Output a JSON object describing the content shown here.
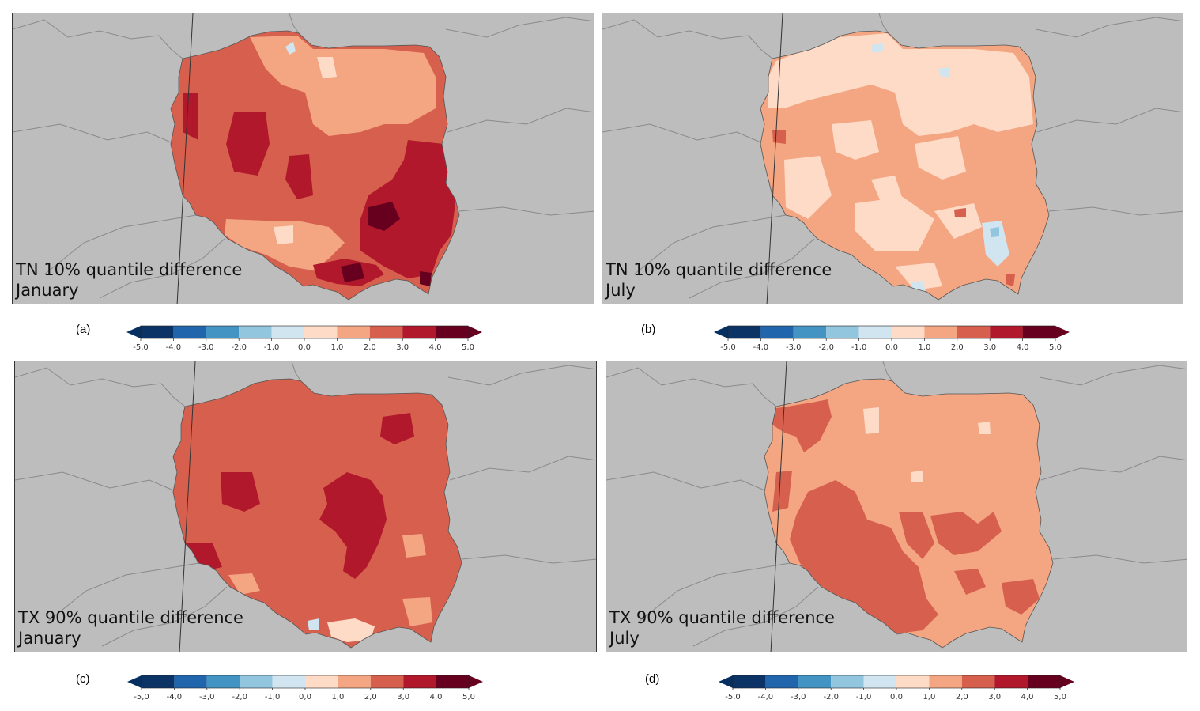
{
  "colorbar": {
    "colors": [
      "#0b3366",
      "#2166ac",
      "#4393c3",
      "#92c5de",
      "#d1e5f0",
      "#fddbc7",
      "#f4a582",
      "#d6604d",
      "#b2182b",
      "#67001f"
    ],
    "under_color": "#053061",
    "over_color": "#67001f",
    "ticks": [
      "-5,0",
      "-4,0",
      "-3,0",
      "-2,0",
      "-1,0",
      "0,0",
      "1,0",
      "2,0",
      "3,0",
      "4,0",
      "5,0"
    ]
  },
  "colors": {
    "background": "#bdbdbd",
    "border_lines": "#8a8a8a",
    "coast": "#555555"
  },
  "panels": [
    {
      "id": "a",
      "label": "(a)",
      "title": "TN 10% quantile difference",
      "month": "January",
      "base_color": "#d6604d",
      "dominant_classes": [
        "3,0 to 4,0",
        "2,0 to 3,0"
      ]
    },
    {
      "id": "b",
      "label": "(b)",
      "title": "TN 10% quantile difference",
      "month": "July",
      "base_color": "#f4a582",
      "dominant_classes": [
        "0,0 to 1,0",
        "1,0 to 2,0"
      ]
    },
    {
      "id": "c",
      "label": "(c)",
      "title": "TX 90% quantile difference",
      "month": "January",
      "base_color": "#d6604d",
      "dominant_classes": [
        "2,0 to 3,0"
      ]
    },
    {
      "id": "d",
      "label": "(d)",
      "title": "TX 90% quantile difference",
      "month": "July",
      "base_color": "#f4a582",
      "dominant_classes": [
        "1,0 to 2,0",
        "2,0 to 3,0"
      ]
    }
  ]
}
